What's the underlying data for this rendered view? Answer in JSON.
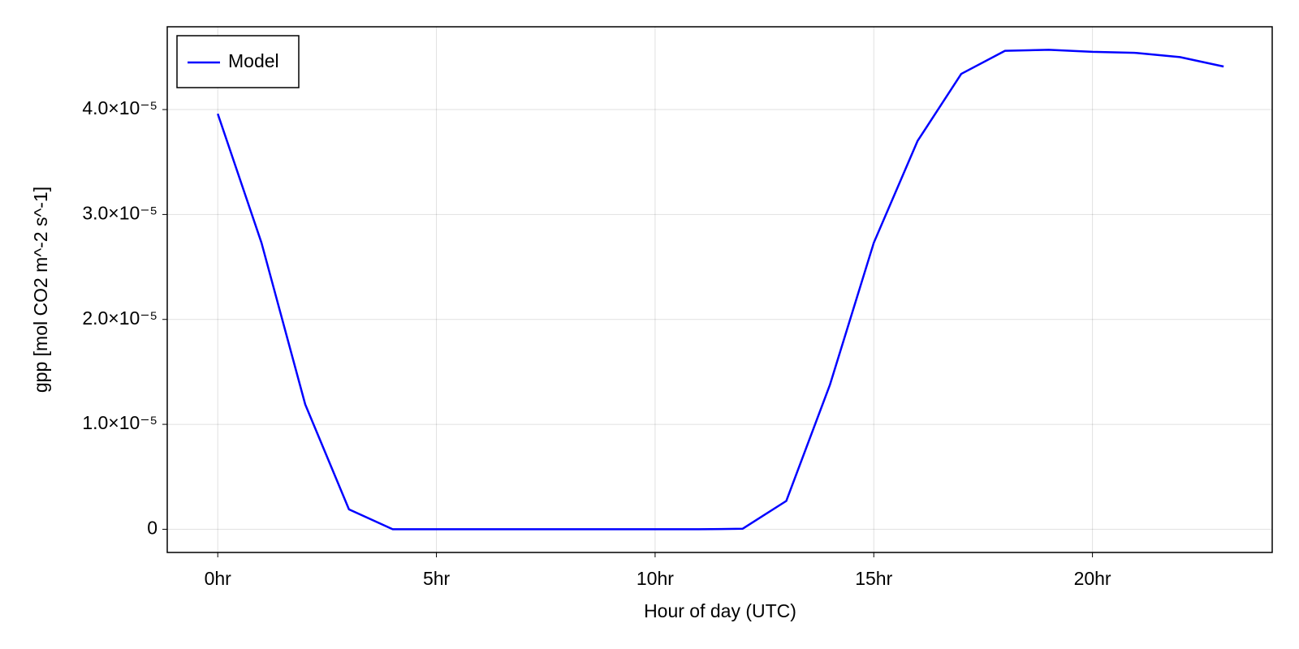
{
  "chart_data": {
    "type": "line",
    "xlabel": "Hour of day (UTC)",
    "ylabel": "gpp [mol CO2 m^-2 s^-1]",
    "x": [
      0,
      1,
      2,
      3,
      4,
      5,
      6,
      7,
      8,
      9,
      10,
      11,
      12,
      13,
      14,
      15,
      16,
      17,
      18,
      19,
      20,
      21,
      22,
      23
    ],
    "series": [
      {
        "name": "Model",
        "color": "#0000ff",
        "values": [
          3.96e-05,
          2.73e-05,
          1.19e-05,
          1.9e-06,
          0,
          0,
          0,
          0,
          0,
          0,
          0,
          0,
          5e-08,
          2.7e-06,
          1.38e-05,
          2.73e-05,
          3.7e-05,
          4.34e-05,
          4.56e-05,
          4.57e-05,
          4.55e-05,
          4.54e-05,
          4.5e-05,
          4.41e-05
        ]
      }
    ],
    "xlim": [
      -1.155,
      24.11
    ],
    "ylim": [
      -2.21e-06,
      4.789e-05
    ],
    "xticks": [
      {
        "value": 0,
        "label": "0hr"
      },
      {
        "value": 5,
        "label": "5hr"
      },
      {
        "value": 10,
        "label": "10hr"
      },
      {
        "value": 15,
        "label": "15hr"
      },
      {
        "value": 20,
        "label": "20hr"
      }
    ],
    "yticks": [
      0,
      {
        "value": 1e-05,
        "label": "1.0×10⁻⁵"
      },
      {
        "value": 2e-05,
        "label": "2.0×10⁻⁵"
      },
      {
        "value": 3e-05,
        "label": "3.0×10⁻⁵"
      },
      {
        "value": 4e-05,
        "label": "4.0×10⁻⁵"
      }
    ],
    "grid": true,
    "legend": "top-left"
  }
}
